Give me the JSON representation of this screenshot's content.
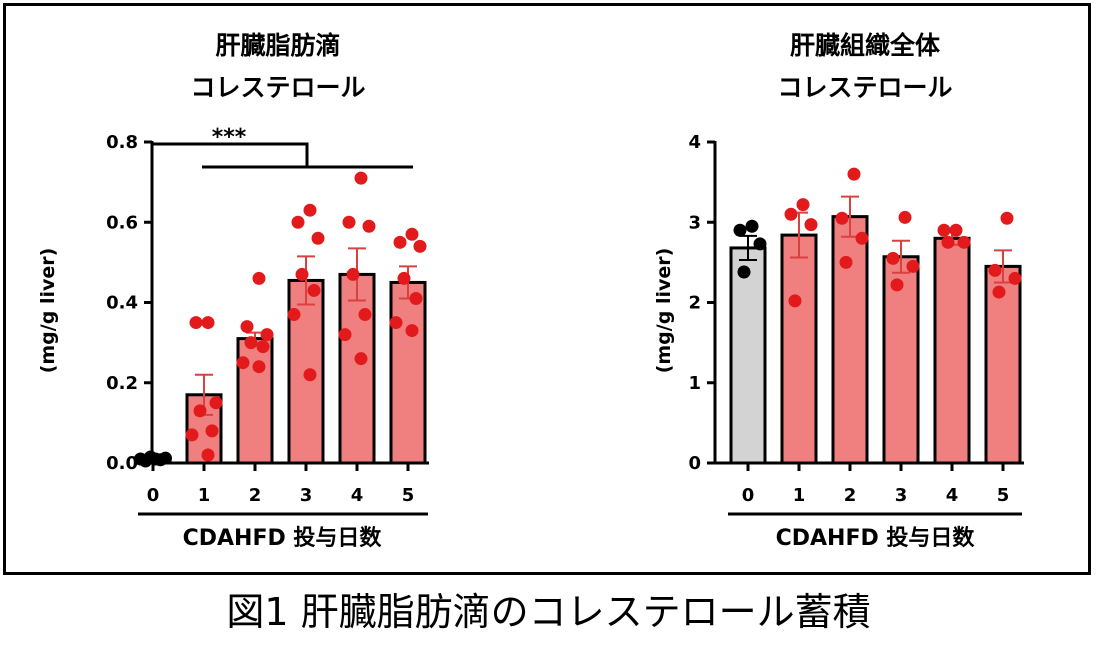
{
  "caption": "図1 肝臓脂肪滴のコレステロール蓄積",
  "colors": {
    "control_bar": "#d3d3d3",
    "treated_bar": "#f08080",
    "control_dot": "#000000",
    "treated_dot": "#e31a1c",
    "error_bar_treated": "#d94040"
  },
  "chart_data": [
    {
      "type": "bar",
      "title_line1": "肝臓脂肪滴",
      "title_line2": "コレステロール",
      "ylabel": "(mg/g liver)",
      "xlabel": "CDAHFD 投与日数",
      "ylim": [
        0,
        0.8
      ],
      "yticks": [
        "0.0",
        "0.2",
        "0.4",
        "0.6",
        "0.8"
      ],
      "categories": [
        "0",
        "1",
        "2",
        "3",
        "4",
        "5"
      ],
      "values": [
        0.01,
        0.17,
        0.31,
        0.455,
        0.47,
        0.45
      ],
      "sem": [
        0.004,
        0.05,
        0.015,
        0.06,
        0.065,
        0.04
      ],
      "points": [
        [
          0.01,
          0.005,
          0.015,
          0.01,
          0.008,
          0.012
        ],
        [
          0.35,
          0.35,
          0.15,
          0.13,
          0.08,
          0.07,
          0.02
        ],
        [
          0.46,
          0.34,
          0.32,
          0.3,
          0.29,
          0.25,
          0.24
        ],
        [
          0.63,
          0.6,
          0.56,
          0.47,
          0.43,
          0.37,
          0.22
        ],
        [
          0.71,
          0.6,
          0.59,
          0.47,
          0.37,
          0.32,
          0.26
        ],
        [
          0.57,
          0.55,
          0.54,
          0.46,
          0.41,
          0.35,
          0.33
        ]
      ],
      "significance": "***",
      "grid": false,
      "legend": "none"
    },
    {
      "type": "bar",
      "title_line1": "肝臓組織全体",
      "title_line2": "コレステロール",
      "ylabel": "(mg/g liver)",
      "xlabel": "CDAHFD 投与日数",
      "ylim": [
        0,
        4
      ],
      "yticks": [
        "0",
        "1",
        "2",
        "3",
        "4"
      ],
      "categories": [
        "0",
        "1",
        "2",
        "3",
        "4",
        "5"
      ],
      "values": [
        2.68,
        2.84,
        3.07,
        2.57,
        2.8,
        2.45
      ],
      "sem": [
        0.15,
        0.28,
        0.25,
        0.2,
        0.08,
        0.2
      ],
      "points": [
        [
          2.95,
          2.9,
          2.73,
          2.38
        ],
        [
          3.22,
          3.1,
          2.97,
          2.02
        ],
        [
          3.6,
          3.05,
          2.8,
          2.5
        ],
        [
          3.06,
          2.55,
          2.45,
          2.22
        ],
        [
          2.9,
          2.9,
          2.75,
          2.75
        ],
        [
          3.05,
          2.4,
          2.3,
          2.13
        ]
      ],
      "grid": false,
      "legend": "none"
    }
  ]
}
